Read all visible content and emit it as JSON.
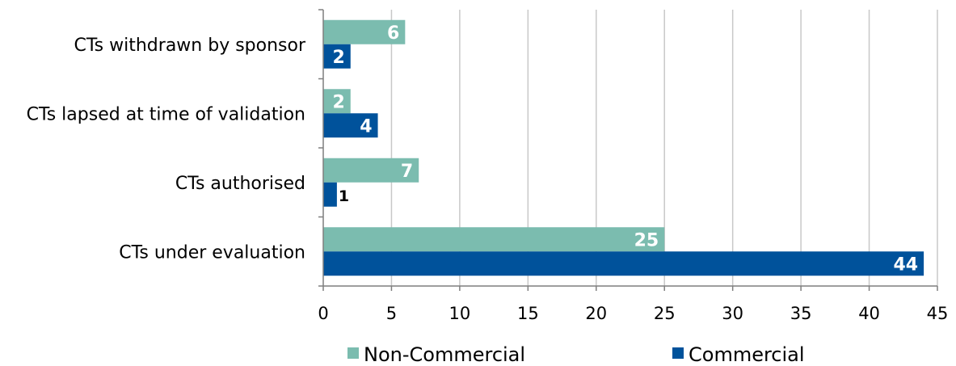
{
  "chart_data": {
    "type": "bar",
    "orientation": "horizontal",
    "categories": [
      "CTs withdrawn by sponsor",
      "CTs lapsed at time of validation",
      "CTs authorised",
      "CTs under evaluation"
    ],
    "series": [
      {
        "name": "Non-Commercial",
        "color": "#7bbcaf",
        "values": [
          6,
          2,
          7,
          25
        ]
      },
      {
        "name": "Commercial",
        "color": "#00529b",
        "values": [
          2,
          4,
          1,
          44
        ]
      }
    ],
    "xlim": [
      0,
      45
    ],
    "xticks": [
      "0",
      "5",
      "10",
      "15",
      "20",
      "25",
      "30",
      "35",
      "40",
      "45"
    ],
    "grid": true,
    "legend_position": "bottom",
    "title": "",
    "xlabel": "",
    "ylabel": ""
  }
}
